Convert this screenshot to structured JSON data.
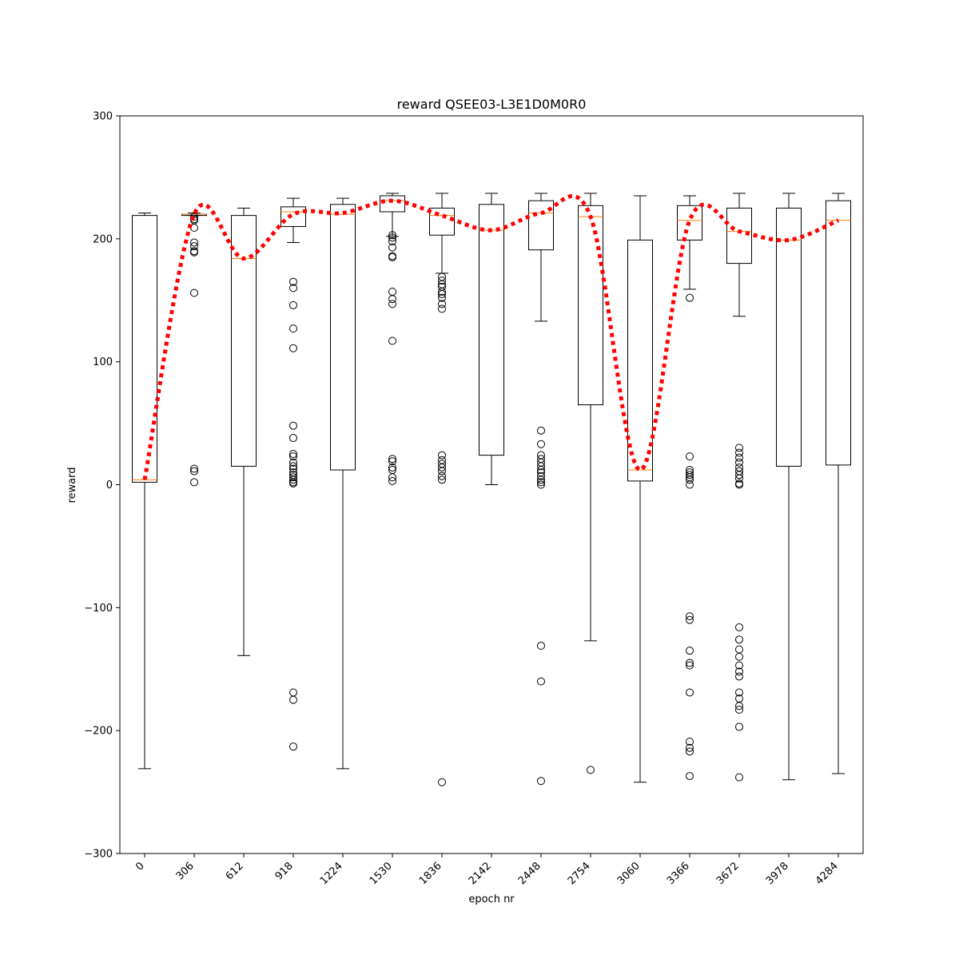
{
  "chart_data": {
    "type": "boxplot",
    "title": "reward QSEE03-L3E1D0M0R0",
    "xlabel": "epoch nr",
    "ylabel": "reward",
    "ylim": [
      -300,
      300
    ],
    "yticks": [
      -300,
      -200,
      -100,
      0,
      100,
      200,
      300
    ],
    "ytick_labels": [
      "−300",
      "−200",
      "−100",
      "0",
      "100",
      "200",
      "300"
    ],
    "categories": [
      "0",
      "306",
      "612",
      "918",
      "1224",
      "1530",
      "1836",
      "2142",
      "2448",
      "2754",
      "3060",
      "3366",
      "3672",
      "3978",
      "4284"
    ],
    "grid": false,
    "colors": {
      "box": "#000000",
      "median": "#ff7f0e",
      "mean_line": "#ff0000"
    },
    "boxes": [
      {
        "q1": 2,
        "median": 4,
        "q3": 219,
        "whisker_low": -231,
        "whisker_high": 221,
        "fliers": []
      },
      {
        "q1": 219,
        "median": 220,
        "q3": 220,
        "whisker_low": 219,
        "whisker_high": 221,
        "fliers": [
          218,
          216,
          215,
          209,
          197,
          194,
          190,
          189,
          156,
          13,
          11,
          2
        ]
      },
      {
        "q1": 15,
        "median": 184,
        "q3": 219,
        "whisker_low": -139,
        "whisker_high": 225,
        "fliers": []
      },
      {
        "q1": 210,
        "median": 222,
        "q3": 226,
        "whisker_low": 197,
        "whisker_high": 233,
        "fliers": [
          165,
          160,
          146,
          127,
          111,
          48,
          38,
          25,
          23,
          18,
          15,
          13,
          10,
          8,
          6,
          4,
          2,
          1,
          -169,
          -175,
          -213
        ]
      },
      {
        "q1": 12,
        "median": 220,
        "q3": 228,
        "whisker_low": -231,
        "whisker_high": 233,
        "fliers": []
      },
      {
        "q1": 222,
        "median": 231,
        "q3": 235,
        "whisker_low": 202,
        "whisker_high": 237,
        "fliers": [
          203,
          201,
          198,
          193,
          186,
          185,
          157,
          151,
          147,
          117,
          21,
          19,
          14,
          12,
          6,
          3
        ]
      },
      {
        "q1": 203,
        "median": 219,
        "q3": 225,
        "whisker_low": 172,
        "whisker_high": 237,
        "fliers": [
          169,
          166,
          163,
          161,
          157,
          155,
          152,
          147,
          143,
          24,
          20,
          17,
          14,
          11,
          7,
          4,
          -242
        ]
      },
      {
        "q1": 24,
        "median": 207,
        "q3": 228,
        "whisker_low": 0,
        "whisker_high": 237,
        "fliers": []
      },
      {
        "q1": 191,
        "median": 221,
        "q3": 231,
        "whisker_low": 133,
        "whisker_high": 237,
        "fliers": [
          44,
          33,
          24,
          21,
          18,
          15,
          12,
          10,
          7,
          4,
          2,
          0,
          -131,
          -160,
          -241
        ]
      },
      {
        "q1": 65,
        "median": 218,
        "q3": 227,
        "whisker_low": -127,
        "whisker_high": 237,
        "fliers": [
          -232
        ]
      },
      {
        "q1": 3,
        "median": 12,
        "q3": 199,
        "whisker_low": -242,
        "whisker_high": 235,
        "fliers": []
      },
      {
        "q1": 199,
        "median": 215,
        "q3": 227,
        "whisker_low": 159,
        "whisker_high": 235,
        "fliers": [
          152,
          23,
          12,
          10,
          8,
          6,
          4,
          0,
          -107,
          -110,
          -135,
          -145,
          -147,
          -169,
          -209,
          -214,
          -217,
          -237
        ]
      },
      {
        "q1": 180,
        "median": 206,
        "q3": 225,
        "whisker_low": 137,
        "whisker_high": 237,
        "fliers": [
          30,
          26,
          22,
          18,
          14,
          11,
          8,
          5,
          1,
          0,
          -116,
          -126,
          -134,
          -140,
          -147,
          -152,
          -156,
          -169,
          -174,
          -180,
          -183,
          -197,
          -238
        ]
      },
      {
        "q1": 15,
        "median": 199,
        "q3": 225,
        "whisker_low": -240,
        "whisker_high": 237,
        "fliers": []
      },
      {
        "q1": 16,
        "median": 215,
        "q3": 231,
        "whisker_low": -235,
        "whisker_high": 237,
        "fliers": []
      }
    ],
    "mean_line": [
      4,
      220,
      184,
      220,
      221,
      231,
      219,
      207,
      221,
      218,
      12,
      215,
      206,
      199,
      215
    ]
  }
}
